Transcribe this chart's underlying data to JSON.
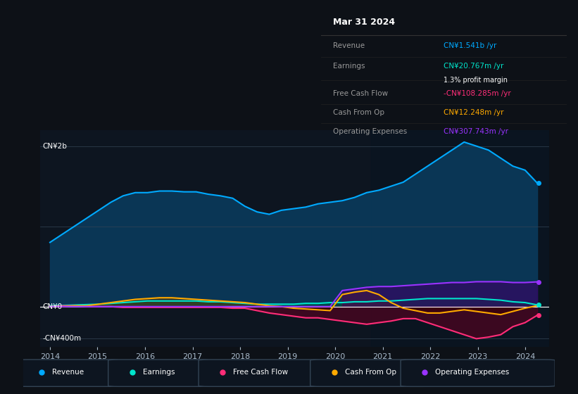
{
  "background_color": "#0d1117",
  "plot_bg_color": "#0d1520",
  "revenue_color": "#00aaff",
  "earnings_color": "#00e5cc",
  "fcf_color": "#ff2d78",
  "cashfromop_color": "#ffaa00",
  "opex_color": "#9933ff",
  "legend_items": [
    "Revenue",
    "Earnings",
    "Free Cash Flow",
    "Cash From Op",
    "Operating Expenses"
  ],
  "info_box": {
    "date": "Mar 31 2024",
    "revenue_label": "Revenue",
    "revenue_value": "CN¥1.541b /yr",
    "revenue_color": "#00aaff",
    "earnings_label": "Earnings",
    "earnings_value": "CN¥20.767m /yr",
    "earnings_color": "#00e5cc",
    "profit_margin": "1.3% profit margin",
    "fcf_label": "Free Cash Flow",
    "fcf_value": "-CN¥108.285m /yr",
    "fcf_color": "#ff2d78",
    "cashop_label": "Cash From Op",
    "cashop_value": "CN¥12.248m /yr",
    "cashop_color": "#ffaa00",
    "opex_label": "Operating Expenses",
    "opex_value": "CN¥307.743m /yr",
    "opex_color": "#9933ff"
  }
}
